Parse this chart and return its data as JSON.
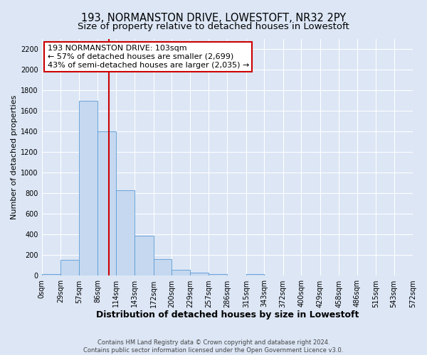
{
  "title": "193, NORMANSTON DRIVE, LOWESTOFT, NR32 2PY",
  "subtitle": "Size of property relative to detached houses in Lowestoft",
  "xlabel": "Distribution of detached houses by size in Lowestoft",
  "ylabel": "Number of detached properties",
  "bar_edges": [
    0,
    29,
    57,
    86,
    114,
    143,
    172,
    200,
    229,
    257,
    286,
    315,
    343,
    372,
    400,
    429,
    458,
    486,
    515,
    543,
    572
  ],
  "bar_heights": [
    20,
    155,
    1700,
    1400,
    830,
    390,
    160,
    60,
    30,
    15,
    5,
    20,
    0,
    0,
    0,
    0,
    0,
    0,
    0,
    0
  ],
  "bar_color": "#c5d8f0",
  "bar_edge_color": "#5b9bd5",
  "property_line_x": 103,
  "property_line_color": "#cc0000",
  "annotation_text": "193 NORMANSTON DRIVE: 103sqm\n← 57% of detached houses are smaller (2,699)\n43% of semi-detached houses are larger (2,035) →",
  "annotation_box_color": "#ffffff",
  "annotation_box_edge_color": "#cc0000",
  "ylim": [
    0,
    2300
  ],
  "yticks": [
    0,
    200,
    400,
    600,
    800,
    1000,
    1200,
    1400,
    1600,
    1800,
    2000,
    2200
  ],
  "x_tick_labels": [
    "0sqm",
    "29sqm",
    "57sqm",
    "86sqm",
    "114sqm",
    "143sqm",
    "172sqm",
    "200sqm",
    "229sqm",
    "257sqm",
    "286sqm",
    "315sqm",
    "343sqm",
    "372sqm",
    "400sqm",
    "429sqm",
    "458sqm",
    "486sqm",
    "515sqm",
    "543sqm",
    "572sqm"
  ],
  "background_color": "#dce6f5",
  "plot_bg_color": "#dce6f5",
  "grid_color": "#ffffff",
  "footer_text": "Contains HM Land Registry data © Crown copyright and database right 2024.\nContains public sector information licensed under the Open Government Licence v3.0.",
  "title_fontsize": 10.5,
  "subtitle_fontsize": 9.5,
  "xlabel_fontsize": 9,
  "ylabel_fontsize": 8,
  "tick_fontsize": 7,
  "annotation_fontsize": 8,
  "footer_fontsize": 6
}
